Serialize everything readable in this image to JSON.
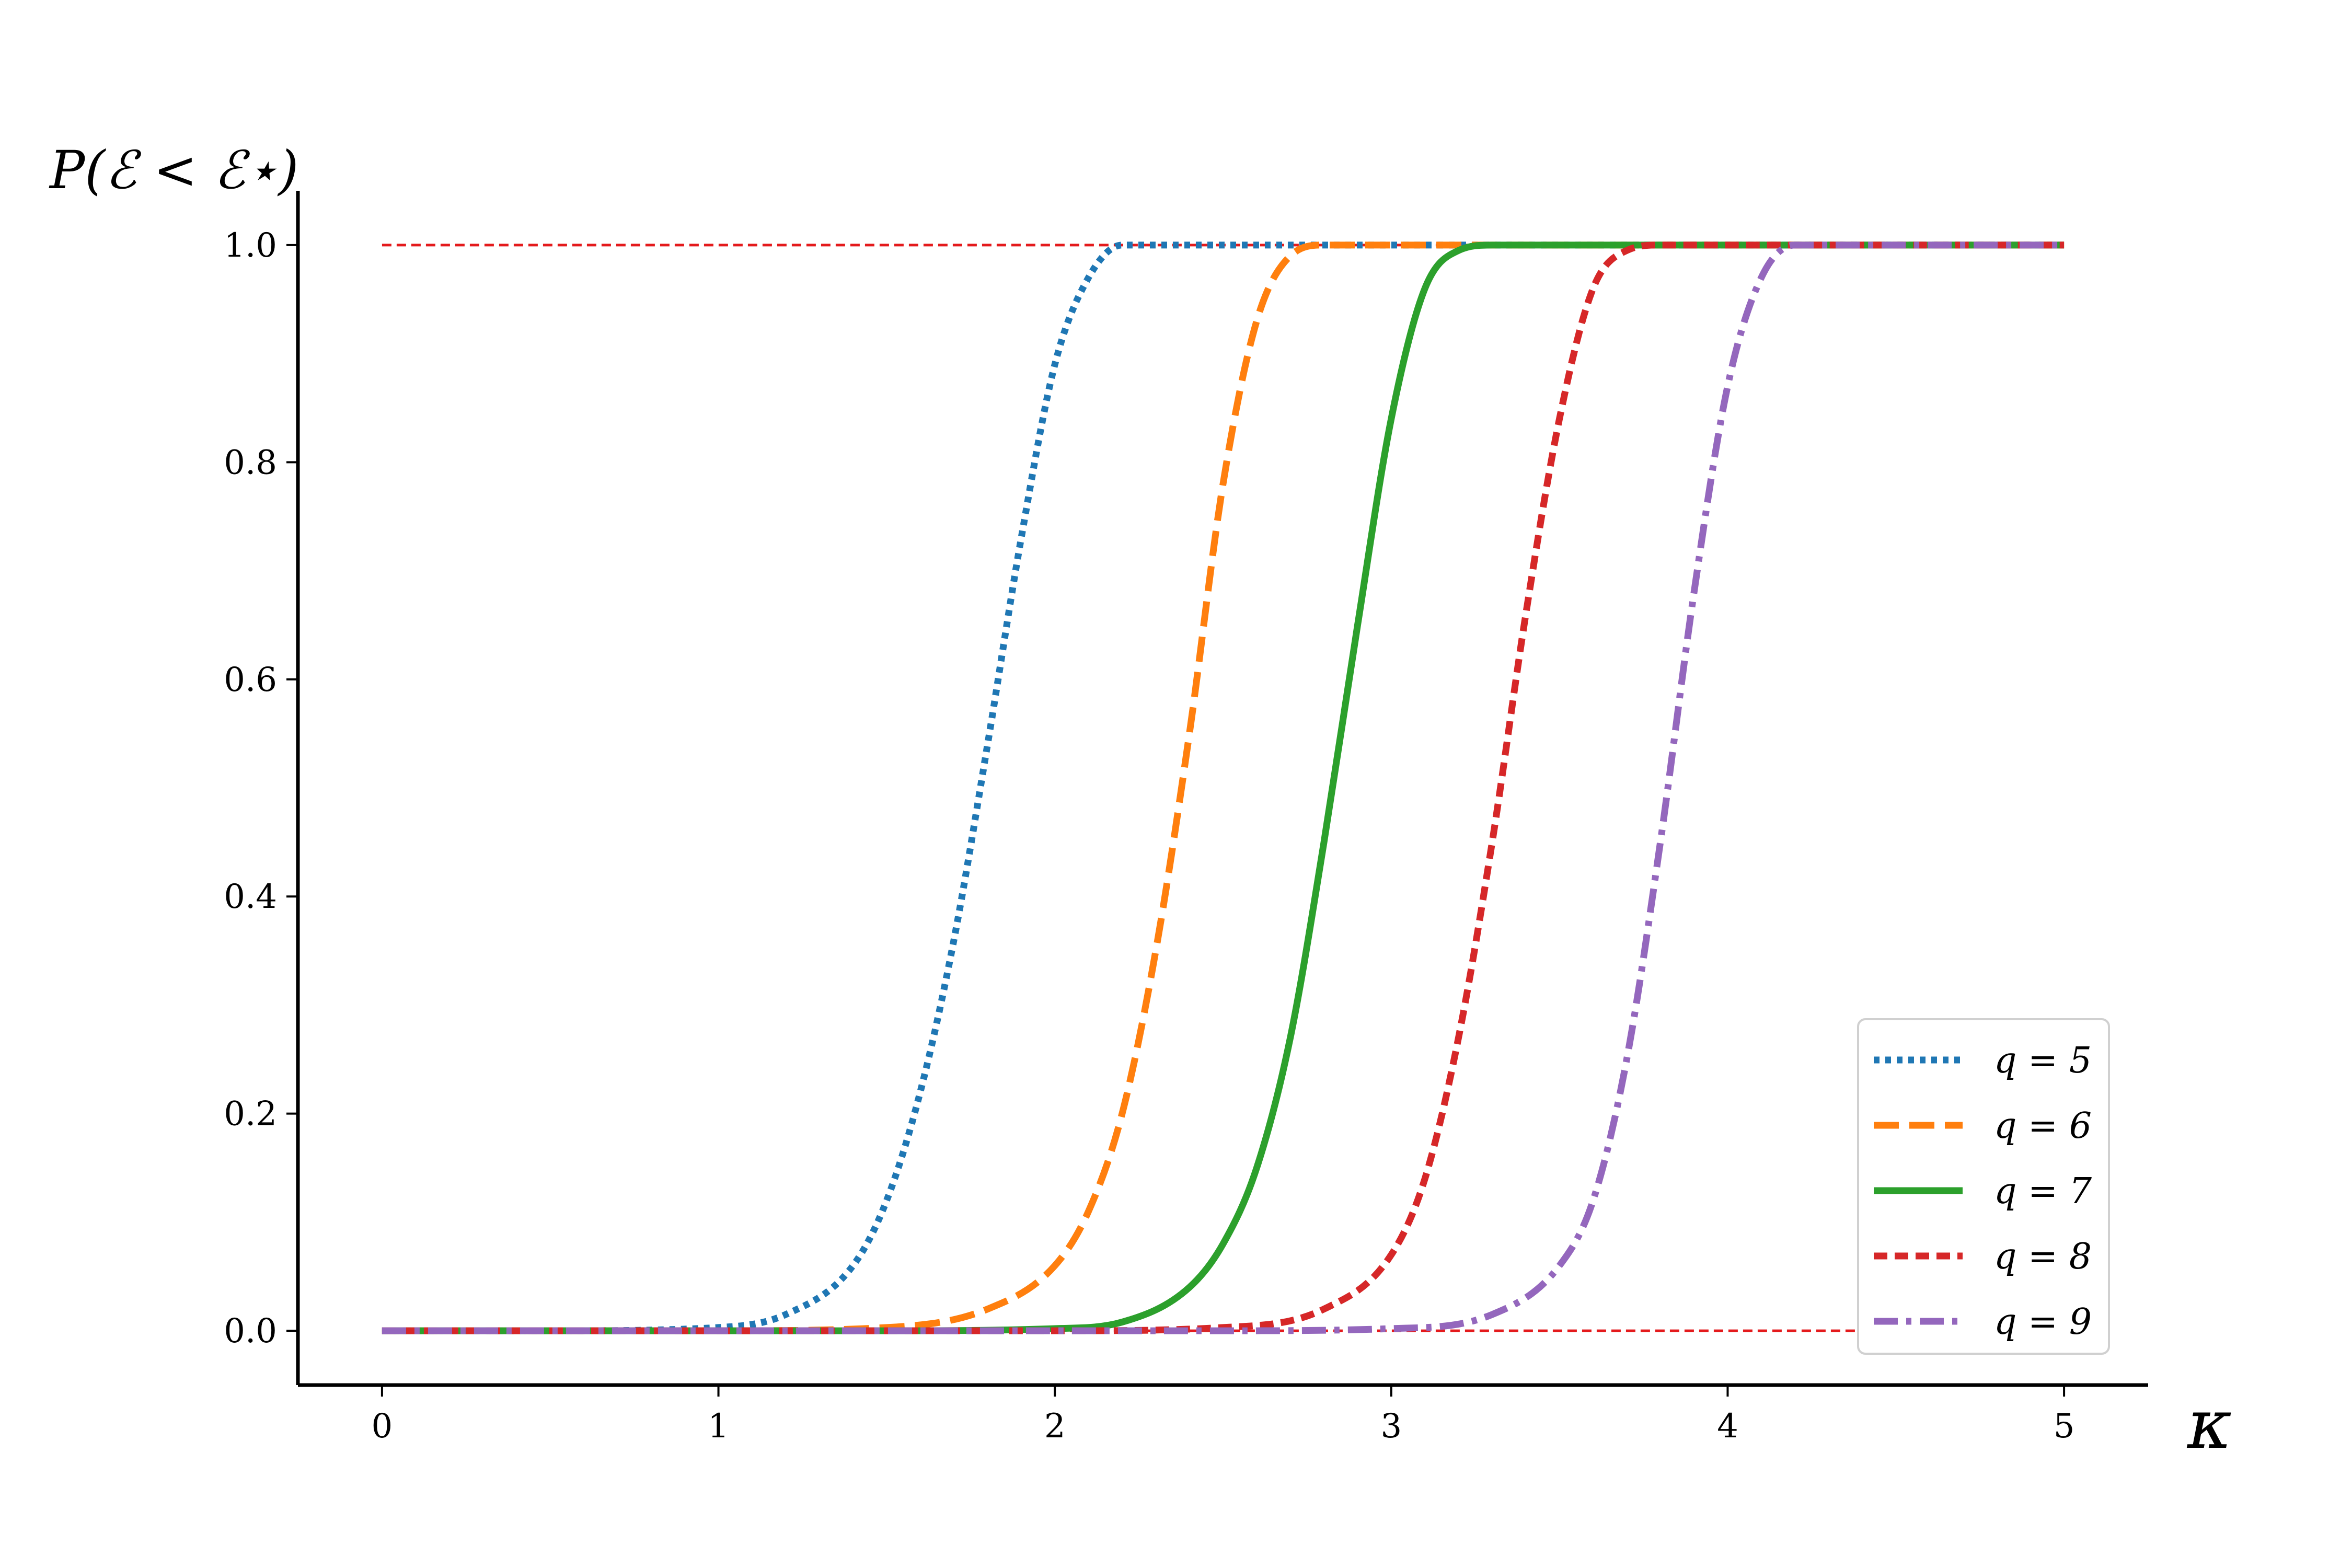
{
  "chart_data": {
    "type": "line",
    "xlabel": "κ",
    "ylabel": "P(ℰ < ℰ⋆)",
    "xlim": [
      -0.25,
      5.25
    ],
    "ylim": [
      -0.05,
      1.05
    ],
    "x_ticks": [
      0,
      1,
      2,
      3,
      4,
      5
    ],
    "x_tick_labels": [
      "0",
      "1",
      "2",
      "3",
      "4",
      "5"
    ],
    "y_ticks": [
      0.0,
      0.2,
      0.4,
      0.6,
      0.8,
      1.0
    ],
    "y_tick_labels": [
      "0.0",
      "0.2",
      "0.4",
      "0.6",
      "0.8",
      "1.0"
    ],
    "grid": false,
    "legend_position": "bottom-right",
    "reference_lines": [
      {
        "y": 1.0,
        "x_range": [
          0,
          5
        ],
        "color": "#e41a1c",
        "style": "dashed"
      },
      {
        "y": 0.0,
        "x_range": [
          0,
          5
        ],
        "color": "#e41a1c",
        "style": "dashed"
      }
    ],
    "series": [
      {
        "name": "q = 5",
        "color": "#1f77b4",
        "style": "dotted",
        "x": [
          0,
          0.5,
          1.0,
          1.2,
          1.4,
          1.5,
          1.6,
          1.7,
          1.8,
          1.9,
          2.0,
          2.1,
          2.2,
          2.4,
          3.0,
          4.0,
          5.0
        ],
        "y": [
          0,
          0,
          0.003,
          0.015,
          0.06,
          0.12,
          0.22,
          0.36,
          0.54,
          0.73,
          0.89,
          0.97,
          1.0,
          1.0,
          1.0,
          1.0,
          1.0
        ]
      },
      {
        "name": "q = 6",
        "color": "#ff7f0e",
        "style": "dashed",
        "x": [
          0,
          1.0,
          1.5,
          1.8,
          2.0,
          2.1,
          2.2,
          2.3,
          2.4,
          2.5,
          2.6,
          2.7,
          2.8,
          3.0,
          4.0,
          5.0
        ],
        "y": [
          0,
          0,
          0.003,
          0.02,
          0.06,
          0.11,
          0.2,
          0.35,
          0.55,
          0.78,
          0.93,
          0.99,
          1.0,
          1.0,
          1.0,
          1.0
        ]
      },
      {
        "name": "q = 7",
        "color": "#2ca02c",
        "style": "solid",
        "x": [
          0,
          1.5,
          2.0,
          2.2,
          2.4,
          2.5,
          2.6,
          2.7,
          2.8,
          2.9,
          3.0,
          3.1,
          3.2,
          3.3,
          4.0,
          5.0
        ],
        "y": [
          0,
          0,
          0.002,
          0.008,
          0.04,
          0.08,
          0.15,
          0.27,
          0.45,
          0.65,
          0.84,
          0.96,
          0.995,
          1.0,
          1.0,
          1.0
        ]
      },
      {
        "name": "q = 8",
        "color": "#d62728",
        "style": "densely-dashed",
        "x": [
          0,
          2.0,
          2.5,
          2.8,
          3.0,
          3.1,
          3.2,
          3.3,
          3.4,
          3.5,
          3.6,
          3.7,
          3.8,
          4.0,
          5.0
        ],
        "y": [
          0,
          0,
          0.003,
          0.02,
          0.07,
          0.14,
          0.27,
          0.45,
          0.66,
          0.84,
          0.96,
          0.995,
          1.0,
          1.0,
          1.0
        ]
      },
      {
        "name": "q = 9",
        "color": "#9467bd",
        "style": "dash-dot",
        "x": [
          0,
          2.5,
          3.0,
          3.3,
          3.5,
          3.6,
          3.7,
          3.8,
          3.9,
          4.0,
          4.1,
          4.2,
          4.3,
          5.0
        ],
        "y": [
          0,
          0,
          0.002,
          0.015,
          0.06,
          0.12,
          0.25,
          0.45,
          0.68,
          0.87,
          0.97,
          1.0,
          1.0,
          1.0
        ]
      }
    ]
  }
}
